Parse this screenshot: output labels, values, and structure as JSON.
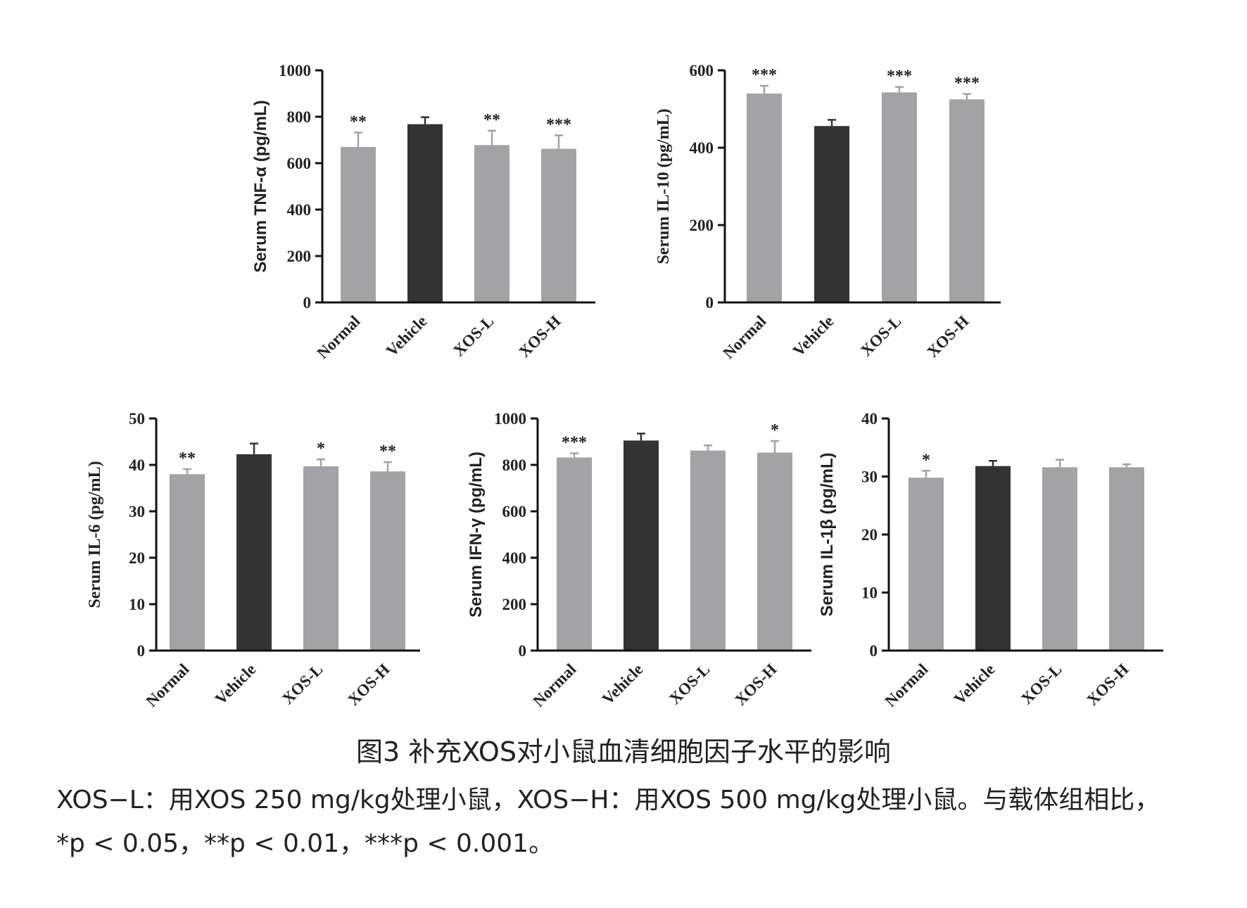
{
  "caption": {
    "title": "图3 补充XOS对小鼠血清细胞因子水平的影响",
    "line1": "XOS−L：用XOS 250 mg/kg处理小鼠，XOS−H：用XOS 500 mg/kg处理小鼠。与载体组相比，",
    "line2": "*p < 0.05，**p < 0.01，***p < 0.001。"
  },
  "colors": {
    "treated": "#a3a3a6",
    "vehicle": "#333333",
    "axis": "#111111",
    "error_treated": "#a3a3a6",
    "error_vehicle": "#333333"
  },
  "chart_data": [
    {
      "id": "tnf",
      "type": "bar",
      "ylabel": "Serum TNF-α (pg/mL)",
      "ylim": [
        0,
        1000
      ],
      "yticks": [
        0,
        200,
        400,
        600,
        800,
        1000
      ],
      "categories": [
        "Normal",
        "Vehicle",
        "XOS-L",
        "XOS-H"
      ],
      "values": [
        670,
        768,
        678,
        662
      ],
      "errors": [
        62,
        30,
        62,
        58
      ],
      "significance": [
        "**",
        "",
        "**",
        "***"
      ],
      "bar_colors": [
        "treated",
        "vehicle",
        "treated",
        "treated"
      ]
    },
    {
      "id": "il10",
      "type": "bar",
      "ylabel": "Serum IL-10 (pg/mL)",
      "ylim": [
        0,
        600
      ],
      "yticks": [
        0,
        200,
        400,
        600
      ],
      "categories": [
        "Normal",
        "Vehicle",
        "XOS-L",
        "XOS-H"
      ],
      "values": [
        540,
        456,
        543,
        525
      ],
      "errors": [
        20,
        16,
        14,
        14
      ],
      "significance": [
        "***",
        "",
        "***",
        "***"
      ],
      "bar_colors": [
        "treated",
        "vehicle",
        "treated",
        "treated"
      ]
    },
    {
      "id": "il6",
      "type": "bar",
      "ylabel": "Serum IL-6 (pg/mL)",
      "ylim": [
        0,
        50
      ],
      "yticks": [
        0,
        10,
        20,
        30,
        40,
        50
      ],
      "categories": [
        "Normal",
        "Vehicle",
        "XOS-L",
        "XOS-H"
      ],
      "values": [
        38,
        42.3,
        39.7,
        38.6
      ],
      "errors": [
        1.1,
        2.3,
        1.5,
        2.0
      ],
      "significance": [
        "**",
        "",
        "*",
        "**"
      ],
      "bar_colors": [
        "treated",
        "vehicle",
        "treated",
        "treated"
      ]
    },
    {
      "id": "ifn",
      "type": "bar",
      "ylabel": "Serum IFN-γ (pg/mL)",
      "ylim": [
        0,
        1000
      ],
      "yticks": [
        0,
        200,
        400,
        600,
        800,
        1000
      ],
      "categories": [
        "Normal",
        "Vehicle",
        "XOS-L",
        "XOS-H"
      ],
      "values": [
        832,
        905,
        862,
        853
      ],
      "errors": [
        18,
        30,
        22,
        50
      ],
      "significance": [
        "***",
        "",
        "",
        "*"
      ],
      "bar_colors": [
        "treated",
        "vehicle",
        "treated",
        "treated"
      ]
    },
    {
      "id": "il1b",
      "type": "bar",
      "ylabel": "Serum IL-1β (pg/mL)",
      "ylim": [
        0,
        40
      ],
      "yticks": [
        0,
        10,
        20,
        30,
        40
      ],
      "categories": [
        "Normal",
        "Vehicle",
        "XOS-L",
        "XOS-H"
      ],
      "values": [
        29.8,
        31.8,
        31.6,
        31.6
      ],
      "errors": [
        1.2,
        0.9,
        1.3,
        0.5
      ],
      "significance": [
        "*",
        "",
        "",
        ""
      ],
      "bar_colors": [
        "treated",
        "vehicle",
        "treated",
        "treated"
      ]
    }
  ]
}
